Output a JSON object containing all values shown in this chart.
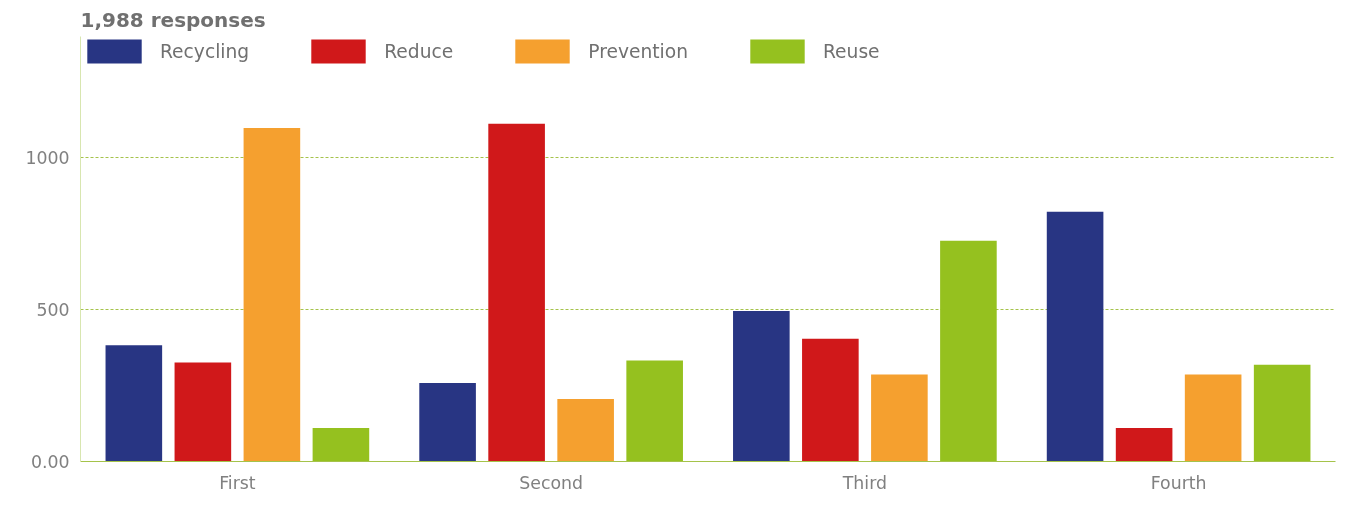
{
  "chart_data": {
    "type": "bar",
    "title": "1,988 responses",
    "categories": [
      "First",
      "Second",
      "Third",
      "Fourth"
    ],
    "series": [
      {
        "name": "Recycling",
        "color": "#283583",
        "values": [
          383,
          259,
          496,
          823
        ]
      },
      {
        "name": "Reduce",
        "color": "#d0181a",
        "values": [
          326,
          1113,
          404,
          110
        ]
      },
      {
        "name": "Prevention",
        "color": "#f5a02f",
        "values": [
          1099,
          206,
          287,
          287
        ]
      },
      {
        "name": "Reuse",
        "color": "#95c11f",
        "values": [
          110,
          333,
          727,
          319
        ]
      }
    ],
    "ylim": [
      0,
      1400
    ],
    "yticks": [
      {
        "value": 0,
        "label": "0.00"
      },
      500,
      1000
    ],
    "grid": "y",
    "legend": "top left"
  }
}
